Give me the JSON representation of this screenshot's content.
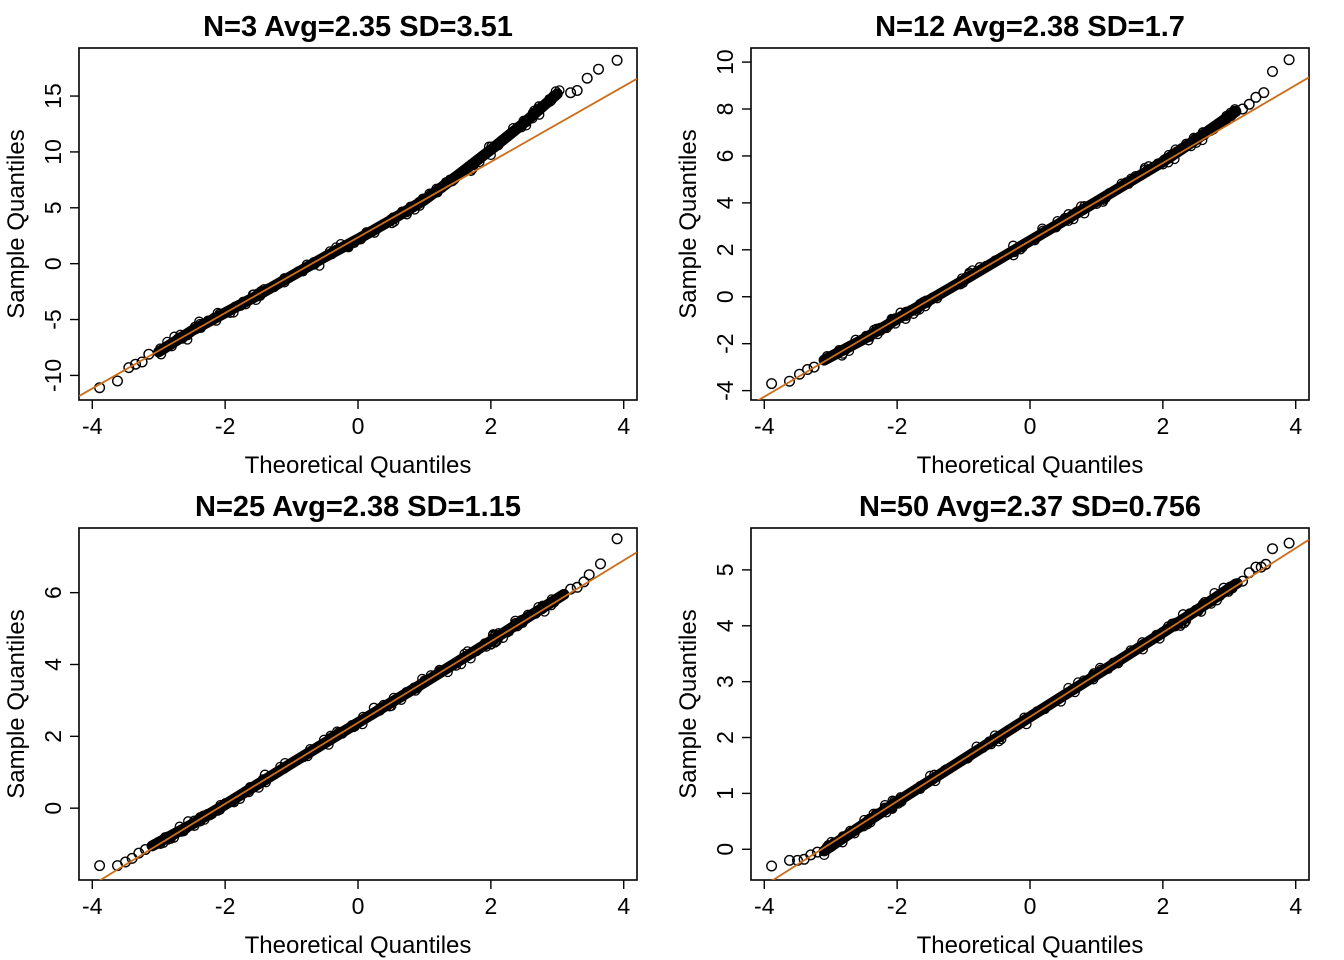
{
  "chart_data": [
    {
      "type": "scatter",
      "title": "N=3 Avg=2.35 SD=3.51",
      "xlabel": "Theoretical Quantiles",
      "ylabel": "Sample Quantiles",
      "xlim": [
        -4.2,
        4.2
      ],
      "ylim": [
        -12.2,
        19.3
      ],
      "xticks": [
        -4,
        -2,
        0,
        2,
        4
      ],
      "xtick_labels": [
        "-4",
        "-2",
        "0",
        "2",
        "4"
      ],
      "yticks": [
        -10,
        -5,
        0,
        5,
        10,
        15
      ],
      "ytick_labels": [
        "-10",
        "-5",
        "0",
        "5",
        "10",
        "15"
      ],
      "reference_line": {
        "intercept": 2.35,
        "slope": 3.38
      },
      "curve": [
        [
          -3.0,
          -7.9
        ],
        [
          -2.5,
          -6.0
        ],
        [
          -2.0,
          -4.4
        ],
        [
          -1.5,
          -2.8
        ],
        [
          -1.0,
          -1.1
        ],
        [
          -0.5,
          0.6
        ],
        [
          0,
          2.2
        ],
        [
          0.5,
          3.9
        ],
        [
          1.0,
          5.7
        ],
        [
          1.5,
          7.9
        ],
        [
          2.0,
          10.2
        ],
        [
          2.5,
          12.6
        ],
        [
          3.0,
          15.2
        ]
      ],
      "points": [
        [
          -3.89,
          -11.1
        ],
        [
          -3.62,
          -10.5
        ],
        [
          -3.45,
          -9.3
        ],
        [
          -3.35,
          -9.0
        ],
        [
          -3.25,
          -8.8
        ],
        [
          -3.15,
          -8.1
        ],
        [
          3.2,
          15.3
        ],
        [
          3.3,
          15.5
        ],
        [
          3.45,
          16.6
        ],
        [
          3.62,
          17.4
        ],
        [
          3.9,
          18.2
        ]
      ],
      "colors": {
        "line": "#cc6d1a",
        "points": "#000000"
      }
    },
    {
      "type": "scatter",
      "title": "N=12 Avg=2.38 SD=1.7",
      "xlabel": "Theoretical Quantiles",
      "ylabel": "Sample Quantiles",
      "xlim": [
        -4.2,
        4.2
      ],
      "ylim": [
        -4.4,
        10.6
      ],
      "xticks": [
        -4,
        -2,
        0,
        2,
        4
      ],
      "xtick_labels": [
        "-4",
        "-2",
        "0",
        "2",
        "4"
      ],
      "yticks": [
        -4,
        -2,
        0,
        2,
        4,
        6,
        8,
        10
      ],
      "ytick_labels": [
        "-4",
        "-2",
        "0",
        "2",
        "4",
        "6",
        "8",
        "10"
      ],
      "reference_line": {
        "intercept": 2.38,
        "slope": 1.66
      },
      "curve": [
        [
          -3.1,
          -2.7
        ],
        [
          -2.5,
          -1.8
        ],
        [
          -2.0,
          -0.95
        ],
        [
          -1.0,
          0.7
        ],
        [
          0,
          2.38
        ],
        [
          1.0,
          4.05
        ],
        [
          2.0,
          5.75
        ],
        [
          2.5,
          6.7
        ],
        [
          3.1,
          7.9
        ]
      ],
      "points": [
        [
          -3.89,
          -3.7
        ],
        [
          -3.62,
          -3.6
        ],
        [
          -3.47,
          -3.3
        ],
        [
          -3.35,
          -3.1
        ],
        [
          -3.25,
          -3.0
        ],
        [
          3.2,
          8.0
        ],
        [
          3.3,
          8.2
        ],
        [
          3.4,
          8.5
        ],
        [
          3.52,
          8.7
        ],
        [
          3.65,
          9.6
        ],
        [
          3.9,
          10.1
        ]
      ],
      "colors": {
        "line": "#cc6d1a",
        "points": "#000000"
      }
    },
    {
      "type": "scatter",
      "title": "N=25 Avg=2.38 SD=1.15",
      "xlabel": "Theoretical Quantiles",
      "ylabel": "Sample Quantiles",
      "xlim": [
        -4.2,
        4.2
      ],
      "ylim": [
        -2.0,
        7.8
      ],
      "xticks": [
        -4,
        -2,
        0,
        2,
        4
      ],
      "xtick_labels": [
        "-4",
        "-2",
        "0",
        "2",
        "4"
      ],
      "yticks": [
        0,
        2,
        4,
        6
      ],
      "ytick_labels": [
        "0",
        "2",
        "4",
        "6"
      ],
      "reference_line": {
        "intercept": 2.38,
        "slope": 1.13
      },
      "curve": [
        [
          -3.1,
          -1.05
        ],
        [
          -2.5,
          -0.45
        ],
        [
          -2.0,
          0.1
        ],
        [
          -1.0,
          1.25
        ],
        [
          0,
          2.38
        ],
        [
          1.0,
          3.5
        ],
        [
          2.0,
          4.65
        ],
        [
          2.5,
          5.25
        ],
        [
          3.1,
          5.95
        ]
      ],
      "points": [
        [
          -3.89,
          -1.6
        ],
        [
          -3.62,
          -1.6
        ],
        [
          -3.5,
          -1.5
        ],
        [
          -3.4,
          -1.4
        ],
        [
          -3.3,
          -1.25
        ],
        [
          -3.2,
          -1.15
        ],
        [
          3.2,
          6.1
        ],
        [
          3.3,
          6.15
        ],
        [
          3.4,
          6.3
        ],
        [
          3.48,
          6.5
        ],
        [
          3.65,
          6.8
        ],
        [
          3.9,
          7.5
        ]
      ],
      "colors": {
        "line": "#cc6d1a",
        "points": "#000000"
      }
    },
    {
      "type": "scatter",
      "title": "N=50 Avg=2.37 SD=0.756",
      "xlabel": "Theoretical Quantiles",
      "ylabel": "Sample Quantiles",
      "xlim": [
        -4.2,
        4.2
      ],
      "ylim": [
        -0.55,
        5.75
      ],
      "xticks": [
        -4,
        -2,
        0,
        2,
        4
      ],
      "xtick_labels": [
        "-4",
        "-2",
        "0",
        "2",
        "4"
      ],
      "yticks": [
        0,
        1,
        2,
        3,
        4,
        5
      ],
      "ytick_labels": [
        "0",
        "1",
        "2",
        "3",
        "4",
        "5"
      ],
      "reference_line": {
        "intercept": 2.37,
        "slope": 0.755
      },
      "curve": [
        [
          -3.1,
          -0.03
        ],
        [
          -2.5,
          0.45
        ],
        [
          -2.0,
          0.85
        ],
        [
          -1.0,
          1.61
        ],
        [
          0,
          2.37
        ],
        [
          1.0,
          3.12
        ],
        [
          2.0,
          3.88
        ],
        [
          2.5,
          4.27
        ],
        [
          3.1,
          4.75
        ]
      ],
      "points": [
        [
          -3.89,
          -0.3
        ],
        [
          -3.62,
          -0.2
        ],
        [
          -3.5,
          -0.2
        ],
        [
          -3.4,
          -0.18
        ],
        [
          -3.3,
          -0.1
        ],
        [
          -3.2,
          -0.05
        ],
        [
          3.2,
          4.8
        ],
        [
          3.3,
          4.95
        ],
        [
          3.4,
          5.05
        ],
        [
          3.48,
          5.05
        ],
        [
          3.55,
          5.1
        ],
        [
          3.65,
          5.38
        ],
        [
          3.9,
          5.48
        ]
      ],
      "colors": {
        "line": "#cc6d1a",
        "points": "#000000"
      }
    }
  ]
}
